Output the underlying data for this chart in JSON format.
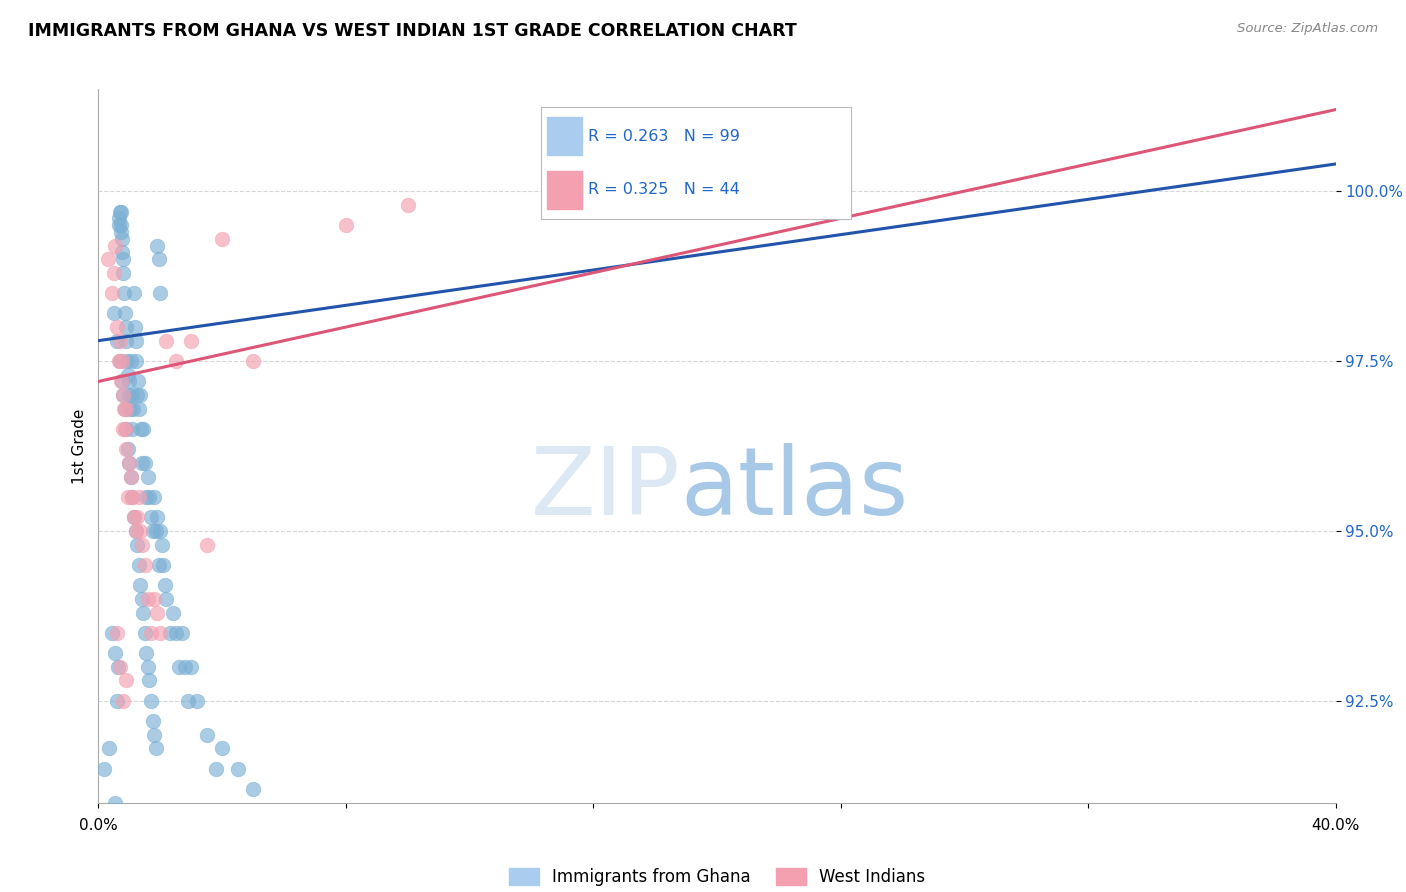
{
  "title": "IMMIGRANTS FROM GHANA VS WEST INDIAN 1ST GRADE CORRELATION CHART",
  "source": "Source: ZipAtlas.com",
  "ylabel": "1st Grade",
  "ytick_values": [
    92.5,
    95.0,
    97.5,
    100.0
  ],
  "xlim": [
    0.0,
    40.0
  ],
  "ylim": [
    91.0,
    101.5
  ],
  "legend_blue_label": "Immigrants from Ghana",
  "legend_pink_label": "West Indians",
  "R_blue": 0.263,
  "N_blue": 99,
  "R_pink": 0.325,
  "N_pink": 44,
  "blue_color": "#7bafd4",
  "pink_color": "#f4a0b0",
  "line_blue_color": "#2255aa",
  "line_pink_color": "#dd5577",
  "blue_line": [
    0.0,
    40.0,
    97.8,
    100.4
  ],
  "pink_line": [
    0.0,
    40.0,
    97.2,
    101.2
  ],
  "ghana_x": [
    0.18,
    0.35,
    0.45,
    0.52,
    0.55,
    0.6,
    0.62,
    0.65,
    0.68,
    0.7,
    0.72,
    0.73,
    0.74,
    0.75,
    0.77,
    0.78,
    0.8,
    0.82,
    0.85,
    0.88,
    0.9,
    0.92,
    0.95,
    0.98,
    1.0,
    1.02,
    1.05,
    1.08,
    1.1,
    1.12,
    1.15,
    1.18,
    1.2,
    1.22,
    1.25,
    1.28,
    1.3,
    1.35,
    1.38,
    1.4,
    1.45,
    1.5,
    1.55,
    1.6,
    1.65,
    1.7,
    1.75,
    1.8,
    1.85,
    1.9,
    1.95,
    2.0,
    2.05,
    2.1,
    2.15,
    2.2,
    2.3,
    2.4,
    2.5,
    2.6,
    2.7,
    2.8,
    2.9,
    3.0,
    3.2,
    3.5,
    3.8,
    4.0,
    4.5,
    5.0,
    0.5,
    0.6,
    0.7,
    0.75,
    0.8,
    0.85,
    0.9,
    0.95,
    1.0,
    1.05,
    1.1,
    1.15,
    1.2,
    1.25,
    1.3,
    1.35,
    1.4,
    1.45,
    1.5,
    1.55,
    1.6,
    1.65,
    1.7,
    1.75,
    1.8,
    1.85,
    1.9,
    1.95,
    2.0
  ],
  "ghana_y": [
    91.5,
    91.8,
    93.5,
    93.2,
    91.0,
    92.5,
    93.0,
    99.5,
    99.6,
    99.7,
    99.7,
    99.5,
    99.4,
    99.3,
    99.1,
    98.8,
    99.0,
    98.5,
    98.2,
    97.8,
    98.0,
    97.5,
    97.3,
    97.0,
    97.2,
    96.8,
    97.5,
    97.0,
    96.5,
    96.8,
    98.5,
    98.0,
    97.8,
    97.5,
    97.0,
    97.2,
    96.8,
    97.0,
    96.5,
    96.0,
    96.5,
    96.0,
    95.5,
    95.8,
    95.5,
    95.2,
    95.0,
    95.5,
    95.0,
    95.2,
    94.5,
    95.0,
    94.8,
    94.5,
    94.2,
    94.0,
    93.5,
    93.8,
    93.5,
    93.0,
    93.5,
    93.0,
    92.5,
    93.0,
    92.5,
    92.0,
    91.5,
    91.8,
    91.5,
    91.2,
    98.2,
    97.8,
    97.5,
    97.2,
    97.0,
    96.8,
    96.5,
    96.2,
    96.0,
    95.8,
    95.5,
    95.2,
    95.0,
    94.8,
    94.5,
    94.2,
    94.0,
    93.8,
    93.5,
    93.2,
    93.0,
    92.8,
    92.5,
    92.2,
    92.0,
    91.8,
    99.2,
    99.0,
    98.5
  ],
  "westindian_x": [
    0.3,
    0.45,
    0.5,
    0.55,
    0.6,
    0.65,
    0.7,
    0.72,
    0.75,
    0.78,
    0.8,
    0.82,
    0.85,
    0.88,
    0.9,
    0.95,
    1.0,
    1.05,
    1.1,
    1.15,
    1.2,
    1.25,
    1.3,
    1.35,
    1.4,
    1.5,
    1.6,
    1.7,
    1.8,
    1.9,
    2.0,
    2.2,
    2.5,
    3.0,
    3.5,
    4.0,
    5.0,
    8.0,
    10.0,
    15.0,
    0.6,
    0.7,
    0.8,
    0.9
  ],
  "westindian_y": [
    99.0,
    98.5,
    98.8,
    99.2,
    98.0,
    97.5,
    97.8,
    97.2,
    97.5,
    97.0,
    96.5,
    96.8,
    96.5,
    96.2,
    96.8,
    95.5,
    96.0,
    95.8,
    95.5,
    95.2,
    95.0,
    95.2,
    95.5,
    95.0,
    94.8,
    94.5,
    94.0,
    93.5,
    94.0,
    93.8,
    93.5,
    97.8,
    97.5,
    97.8,
    94.8,
    99.3,
    97.5,
    99.5,
    99.8,
    99.9,
    93.5,
    93.0,
    92.5,
    92.8
  ]
}
